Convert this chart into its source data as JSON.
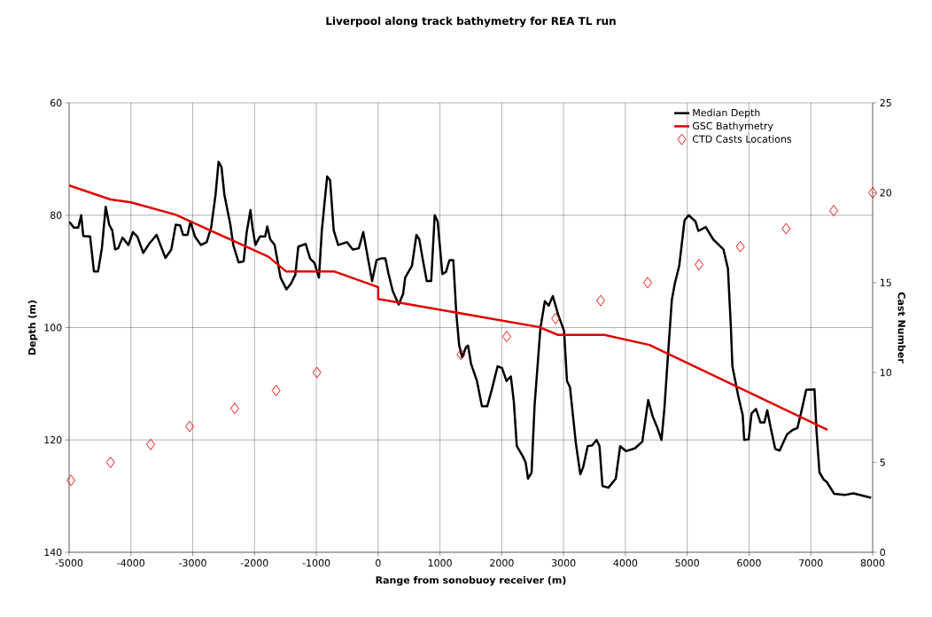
{
  "chart_data": {
    "type": "line",
    "title": "Liverpool along track bathymetry for REA TL run",
    "xlabel": "Range from sonobuoy receiver (m)",
    "ylabel": "Depth (m)",
    "y2label": "Cast Number",
    "xlim": [
      -5000,
      8000
    ],
    "xticks": [
      -5000,
      -4000,
      -3000,
      -2000,
      -1000,
      0,
      1000,
      2000,
      3000,
      4000,
      5000,
      6000,
      7000,
      8000
    ],
    "ylim": [
      140,
      60
    ],
    "yticks": [
      60,
      80,
      100,
      120,
      140
    ],
    "y2lim": [
      0,
      25
    ],
    "y2ticks": [
      0,
      5,
      10,
      15,
      20,
      25
    ],
    "grid": true,
    "legend": "top right",
    "series": [
      {
        "name": "Median Depth",
        "color": "#000000",
        "line_style": "solid",
        "marker": "none",
        "x": [
          -4995,
          -4924,
          -4852,
          -4804,
          -4771,
          -4660,
          -4598,
          -4531,
          -4470,
          -4408,
          -4351,
          -4302,
          -4255,
          -4207,
          -4136,
          -4040,
          -3968,
          -3896,
          -3800,
          -3705,
          -3585,
          -3442,
          -3347,
          -3275,
          -3204,
          -3156,
          -3084,
          -3036,
          -2965,
          -2869,
          -2774,
          -2702,
          -2631,
          -2582,
          -2535,
          -2487,
          -2391,
          -2344,
          -2258,
          -2176,
          -2129,
          -2066,
          -2033,
          -1986,
          -1914,
          -1828,
          -1794,
          -1746,
          -1675,
          -1579,
          -1484,
          -1412,
          -1340,
          -1292,
          -1173,
          -1101,
          -1030,
          -958,
          -911,
          -825,
          -777,
          -719,
          -647,
          -504,
          -409,
          -313,
          -241,
          -170,
          -98,
          -26,
          45,
          117,
          165,
          236,
          332,
          404,
          437,
          547,
          619,
          666,
          714,
          786,
          858,
          915,
          963,
          1039,
          1096,
          1154,
          1216,
          1264,
          1311,
          1359,
          1421,
          1454,
          1502,
          1598,
          1679,
          1765,
          1837,
          1932,
          2004,
          2076,
          2147,
          2195,
          2243,
          2339,
          2386,
          2425,
          2482,
          2530,
          2625,
          2697,
          2759,
          2826,
          2912,
          3008,
          3055,
          3103,
          3199,
          3270,
          3318,
          3390,
          3461,
          3533,
          3581,
          3629,
          3725,
          3844,
          3915,
          4011,
          4154,
          4274,
          4369,
          4441,
          4513,
          4584,
          4632,
          4670,
          4751,
          4799,
          4871,
          4957,
          5023,
          5133,
          5180,
          5300,
          5420,
          5587,
          5659,
          5707,
          5731,
          5826,
          5898,
          5922,
          5994,
          6041,
          6113,
          6185,
          6248,
          6295,
          6352,
          6424,
          6495,
          6615,
          6710,
          6782,
          6829,
          6925,
          7059,
          7092,
          7140,
          7211,
          7259,
          7378,
          7545,
          7689,
          7975
        ],
        "values": [
          81.2,
          82.2,
          82.2,
          80.0,
          83.7,
          83.8,
          90.0,
          90.0,
          85.9,
          78.5,
          81.7,
          82.7,
          86.1,
          85.9,
          84.0,
          85.3,
          83.0,
          83.8,
          86.7,
          85.1,
          83.5,
          87.6,
          86.1,
          81.7,
          81.8,
          83.5,
          83.5,
          81.1,
          83.8,
          85.3,
          84.8,
          82.2,
          76.4,
          70.5,
          71.4,
          76.4,
          81.7,
          85.3,
          88.4,
          88.2,
          83.2,
          79.1,
          82.2,
          85.3,
          83.8,
          83.8,
          82.0,
          84.3,
          85.3,
          91.1,
          93.2,
          92.2,
          90.6,
          85.6,
          85.1,
          87.7,
          88.5,
          91.1,
          82.7,
          73.1,
          73.8,
          82.7,
          85.3,
          84.8,
          86.1,
          85.9,
          83.0,
          87.4,
          91.7,
          88.0,
          87.7,
          87.7,
          90.3,
          93.5,
          95.9,
          94.0,
          91.1,
          89.0,
          83.5,
          84.3,
          87.4,
          91.7,
          91.7,
          80.0,
          81.1,
          90.5,
          90.1,
          88.0,
          88.0,
          97.4,
          103.2,
          105.3,
          103.5,
          103.2,
          106.4,
          109.5,
          114.0,
          114.0,
          111.1,
          106.9,
          107.2,
          109.5,
          108.7,
          113.2,
          121.1,
          122.9,
          124.0,
          126.9,
          125.8,
          114.0,
          100.1,
          95.3,
          96.1,
          94.4,
          97.7,
          100.6,
          109.5,
          110.6,
          120.6,
          126.1,
          124.8,
          121.1,
          121.0,
          120.0,
          121.1,
          128.2,
          128.5,
          126.9,
          121.1,
          122.0,
          121.5,
          120.3,
          112.9,
          115.8,
          117.7,
          120.0,
          114.3,
          108.0,
          95.1,
          92.2,
          89.0,
          80.9,
          80.0,
          81.1,
          82.8,
          82.1,
          84.3,
          86.1,
          89.5,
          100.1,
          106.9,
          112.2,
          115.6,
          120.0,
          119.9,
          115.3,
          114.5,
          116.9,
          116.9,
          114.7,
          117.9,
          121.6,
          121.9,
          119.0,
          118.2,
          117.9,
          115.8,
          111.1,
          111.0,
          118.5,
          125.8,
          127.1,
          127.5,
          129.6,
          129.8,
          129.5,
          130.3
        ]
      },
      {
        "name": "GSC Bathymetry",
        "color": "#e00000",
        "line_style": "solid",
        "marker": "none",
        "x": [
          -5000,
          -4330,
          -4000,
          -3280,
          -1775,
          -1490,
          -715,
          0,
          0,
          2600,
          2910,
          3660,
          4390,
          7270
        ],
        "values": [
          74.7,
          77.2,
          77.7,
          79.9,
          87.4,
          90.0,
          90.0,
          92.8,
          94.9,
          99.9,
          101.3,
          101.3,
          103.1,
          118.2
        ]
      },
      {
        "name": "CTD Casts Locations",
        "type": "scatter",
        "axis": "y2",
        "color": "#e00000",
        "marker": "diamond",
        "x": [
          -4970,
          -4330,
          -3680,
          -3050,
          -2320,
          -1650,
          -990,
          1340,
          2080,
          2870,
          3600,
          4360,
          5190,
          5860,
          6600,
          7370,
          8000
        ],
        "values": [
          4,
          5,
          6,
          7,
          8,
          9,
          10,
          11,
          12,
          13,
          14,
          15,
          16,
          17,
          18,
          19,
          20
        ]
      }
    ]
  }
}
